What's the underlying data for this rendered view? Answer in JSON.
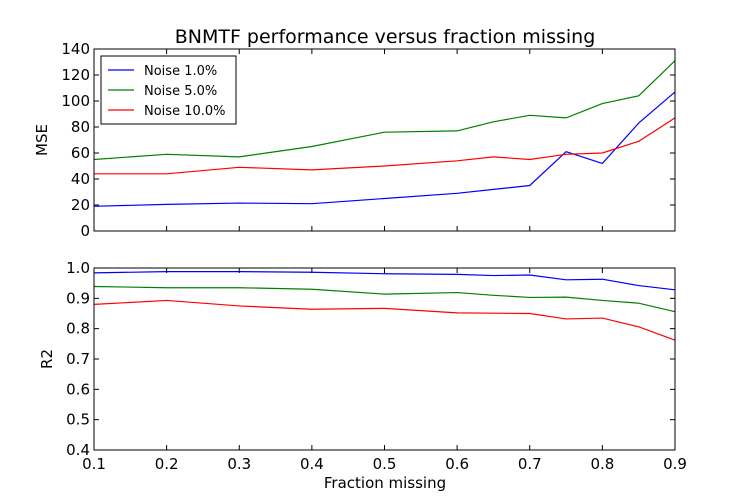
{
  "chart_data": {
    "title": "BNMTF performance versus fraction missing",
    "xlabel": "Fraction missing",
    "x": [
      0.1,
      0.2,
      0.3,
      0.4,
      0.5,
      0.6,
      0.65,
      0.7,
      0.75,
      0.8,
      0.85,
      0.9
    ],
    "x_ticks": [
      "0.1",
      "0.2",
      "0.3",
      "0.4",
      "0.5",
      "0.6",
      "0.7",
      "0.8",
      "0.9"
    ],
    "xlim": [
      0.1,
      0.9
    ],
    "series_colors": [
      "#0000ff",
      "#008000",
      "#ff0000"
    ],
    "legend": {
      "location": "upper-left",
      "entries": [
        "Noise 1.0%",
        "Noise 5.0%",
        "Noise 10.0%"
      ]
    },
    "panels": [
      {
        "type": "line",
        "ylabel": "MSE",
        "ylim": [
          0,
          140
        ],
        "y_ticks": [
          "0",
          "20",
          "40",
          "60",
          "80",
          "100",
          "120",
          "140"
        ],
        "series": [
          {
            "name": "Noise 1.0%",
            "values": [
              19,
              20.5,
              21.5,
              21,
              25,
              29,
              32,
              35,
              61,
              52,
              83,
              107
            ]
          },
          {
            "name": "Noise 5.0%",
            "values": [
              55,
              59,
              57,
              65,
              76,
              77,
              84,
              89,
              87,
              98,
              104,
              131
            ]
          },
          {
            "name": "Noise 10.0%",
            "values": [
              44,
              44,
              49,
              47,
              50,
              54,
              57,
              55,
              59,
              60,
              69,
              87
            ]
          }
        ]
      },
      {
        "type": "line",
        "ylabel": "R2",
        "ylim": [
          0.4,
          1.0
        ],
        "y_ticks": [
          "0.4",
          "0.5",
          "0.6",
          "0.7",
          "0.8",
          "0.9",
          "1.0"
        ],
        "series": [
          {
            "name": "Noise 1.0%",
            "values": [
              0.984,
              0.988,
              0.988,
              0.986,
              0.981,
              0.979,
              0.975,
              0.977,
              0.961,
              0.963,
              0.942,
              0.928
            ]
          },
          {
            "name": "Noise 5.0%",
            "values": [
              0.939,
              0.935,
              0.935,
              0.93,
              0.914,
              0.919,
              0.91,
              0.903,
              0.904,
              0.893,
              0.884,
              0.856
            ]
          },
          {
            "name": "Noise 10.0%",
            "values": [
              0.88,
              0.893,
              0.875,
              0.864,
              0.867,
              0.852,
              0.851,
              0.85,
              0.832,
              0.835,
              0.806,
              0.762
            ]
          }
        ]
      }
    ]
  }
}
